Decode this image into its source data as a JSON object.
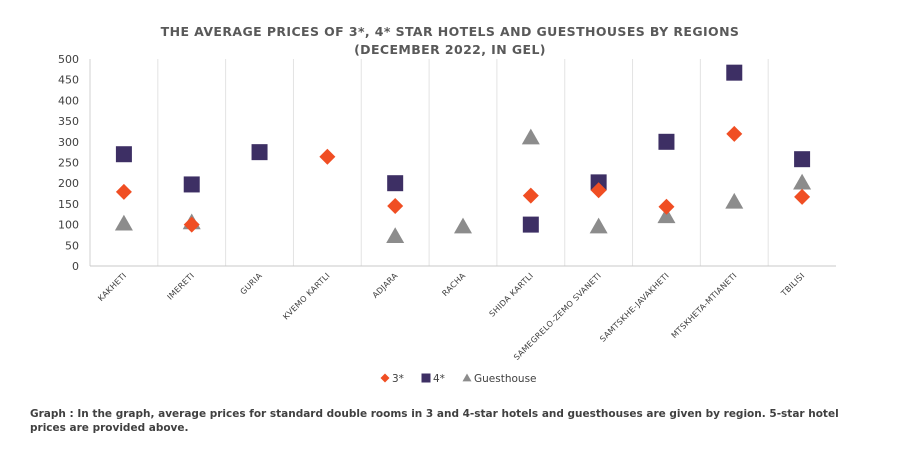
{
  "chart_data": {
    "type": "scatter",
    "title_line1": "THE AVERAGE PRICES OF 3*, 4* STAR HOTELS AND GUESTHOUSES BY REGIONS",
    "title_line2": "(DECEMBER 2022, IN GEL)",
    "categories": [
      "KAKHETI",
      "IMERETI",
      "GURIA",
      "KVEMO KARTLI",
      "ADJARA",
      "RACHA",
      "SHIDA KARTLI",
      "SAMEGRELO-ZEMO SVANETI",
      "SAMTSKHE-JAVAKHETI",
      "MTSKHETA-MTIANETI",
      "TBILISI"
    ],
    "yticks": [
      0,
      50,
      100,
      150,
      200,
      250,
      300,
      350,
      400,
      450,
      500
    ],
    "ylim": [
      0,
      500
    ],
    "grid": "vertical category separators",
    "legend_position": "bottom",
    "series": [
      {
        "name": "3*",
        "marker": "diamond",
        "color": "#f04e23",
        "values": [
          179,
          100,
          null,
          264,
          145,
          null,
          170,
          183,
          143,
          319,
          167
        ]
      },
      {
        "name": "4*",
        "marker": "square",
        "color": "#3d2f64",
        "values": [
          270,
          197,
          275,
          null,
          200,
          null,
          100,
          202,
          300,
          467,
          258
        ]
      },
      {
        "name": "Guesthouse",
        "marker": "triangle",
        "color": "#8c8c8c",
        "values": [
          102,
          105,
          null,
          null,
          72,
          95,
          310,
          95,
          120,
          155,
          201
        ]
      }
    ]
  },
  "caption": "Graph : In the graph, average prices for standard double rooms in 3 and 4-star hotels and guesthouses are given by region. 5-star hotel prices are provided above."
}
